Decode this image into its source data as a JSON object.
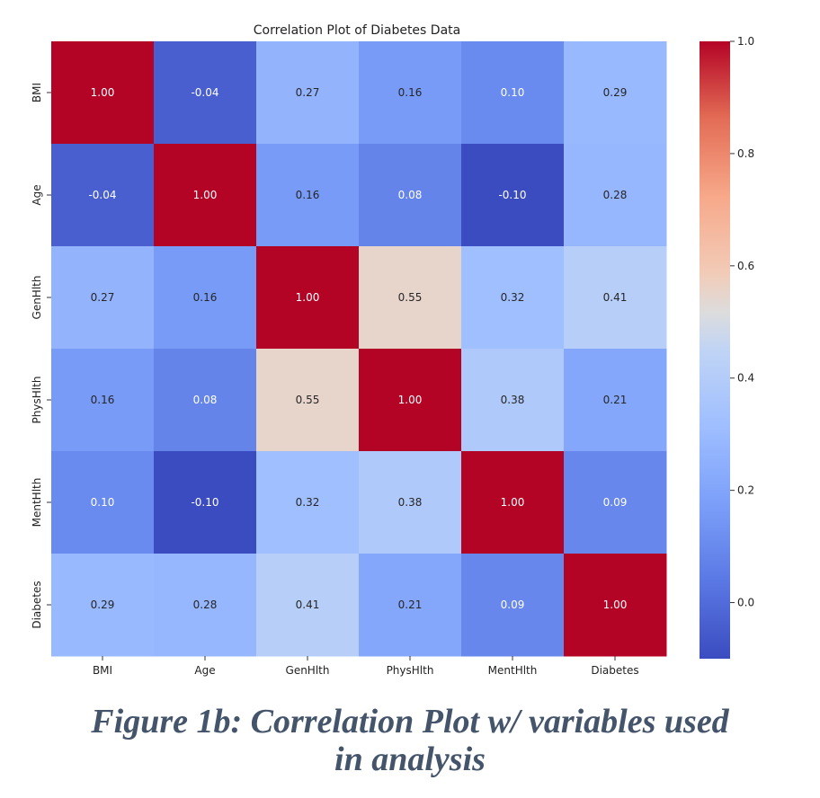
{
  "chart_data": {
    "type": "heatmap",
    "title": "Correlation Plot of Diabetes Data",
    "xlabel": "",
    "ylabel": "",
    "variables": [
      "BMI",
      "Age",
      "GenHlth",
      "PhysHlth",
      "MentHlth",
      "Diabetes"
    ],
    "matrix": [
      [
        1.0,
        -0.04,
        0.27,
        0.16,
        0.1,
        0.29
      ],
      [
        -0.04,
        1.0,
        0.16,
        0.08,
        -0.1,
        0.28
      ],
      [
        0.27,
        0.16,
        1.0,
        0.55,
        0.32,
        0.41
      ],
      [
        0.16,
        0.08,
        0.55,
        1.0,
        0.38,
        0.21
      ],
      [
        0.1,
        -0.1,
        0.32,
        0.38,
        1.0,
        0.09
      ],
      [
        0.29,
        0.28,
        0.41,
        0.21,
        0.09,
        1.0
      ]
    ],
    "value_format": "2 decimals",
    "colormap": "coolwarm",
    "colorbar": {
      "vmin": -0.1,
      "vmax": 1.0,
      "ticks": [
        "0.0",
        "0.2",
        "0.4",
        "0.6",
        "0.8",
        "1.0"
      ]
    }
  },
  "caption": {
    "line1": "Figure 1b: Correlation Plot w/ variables used",
    "line2": "in analysis"
  }
}
